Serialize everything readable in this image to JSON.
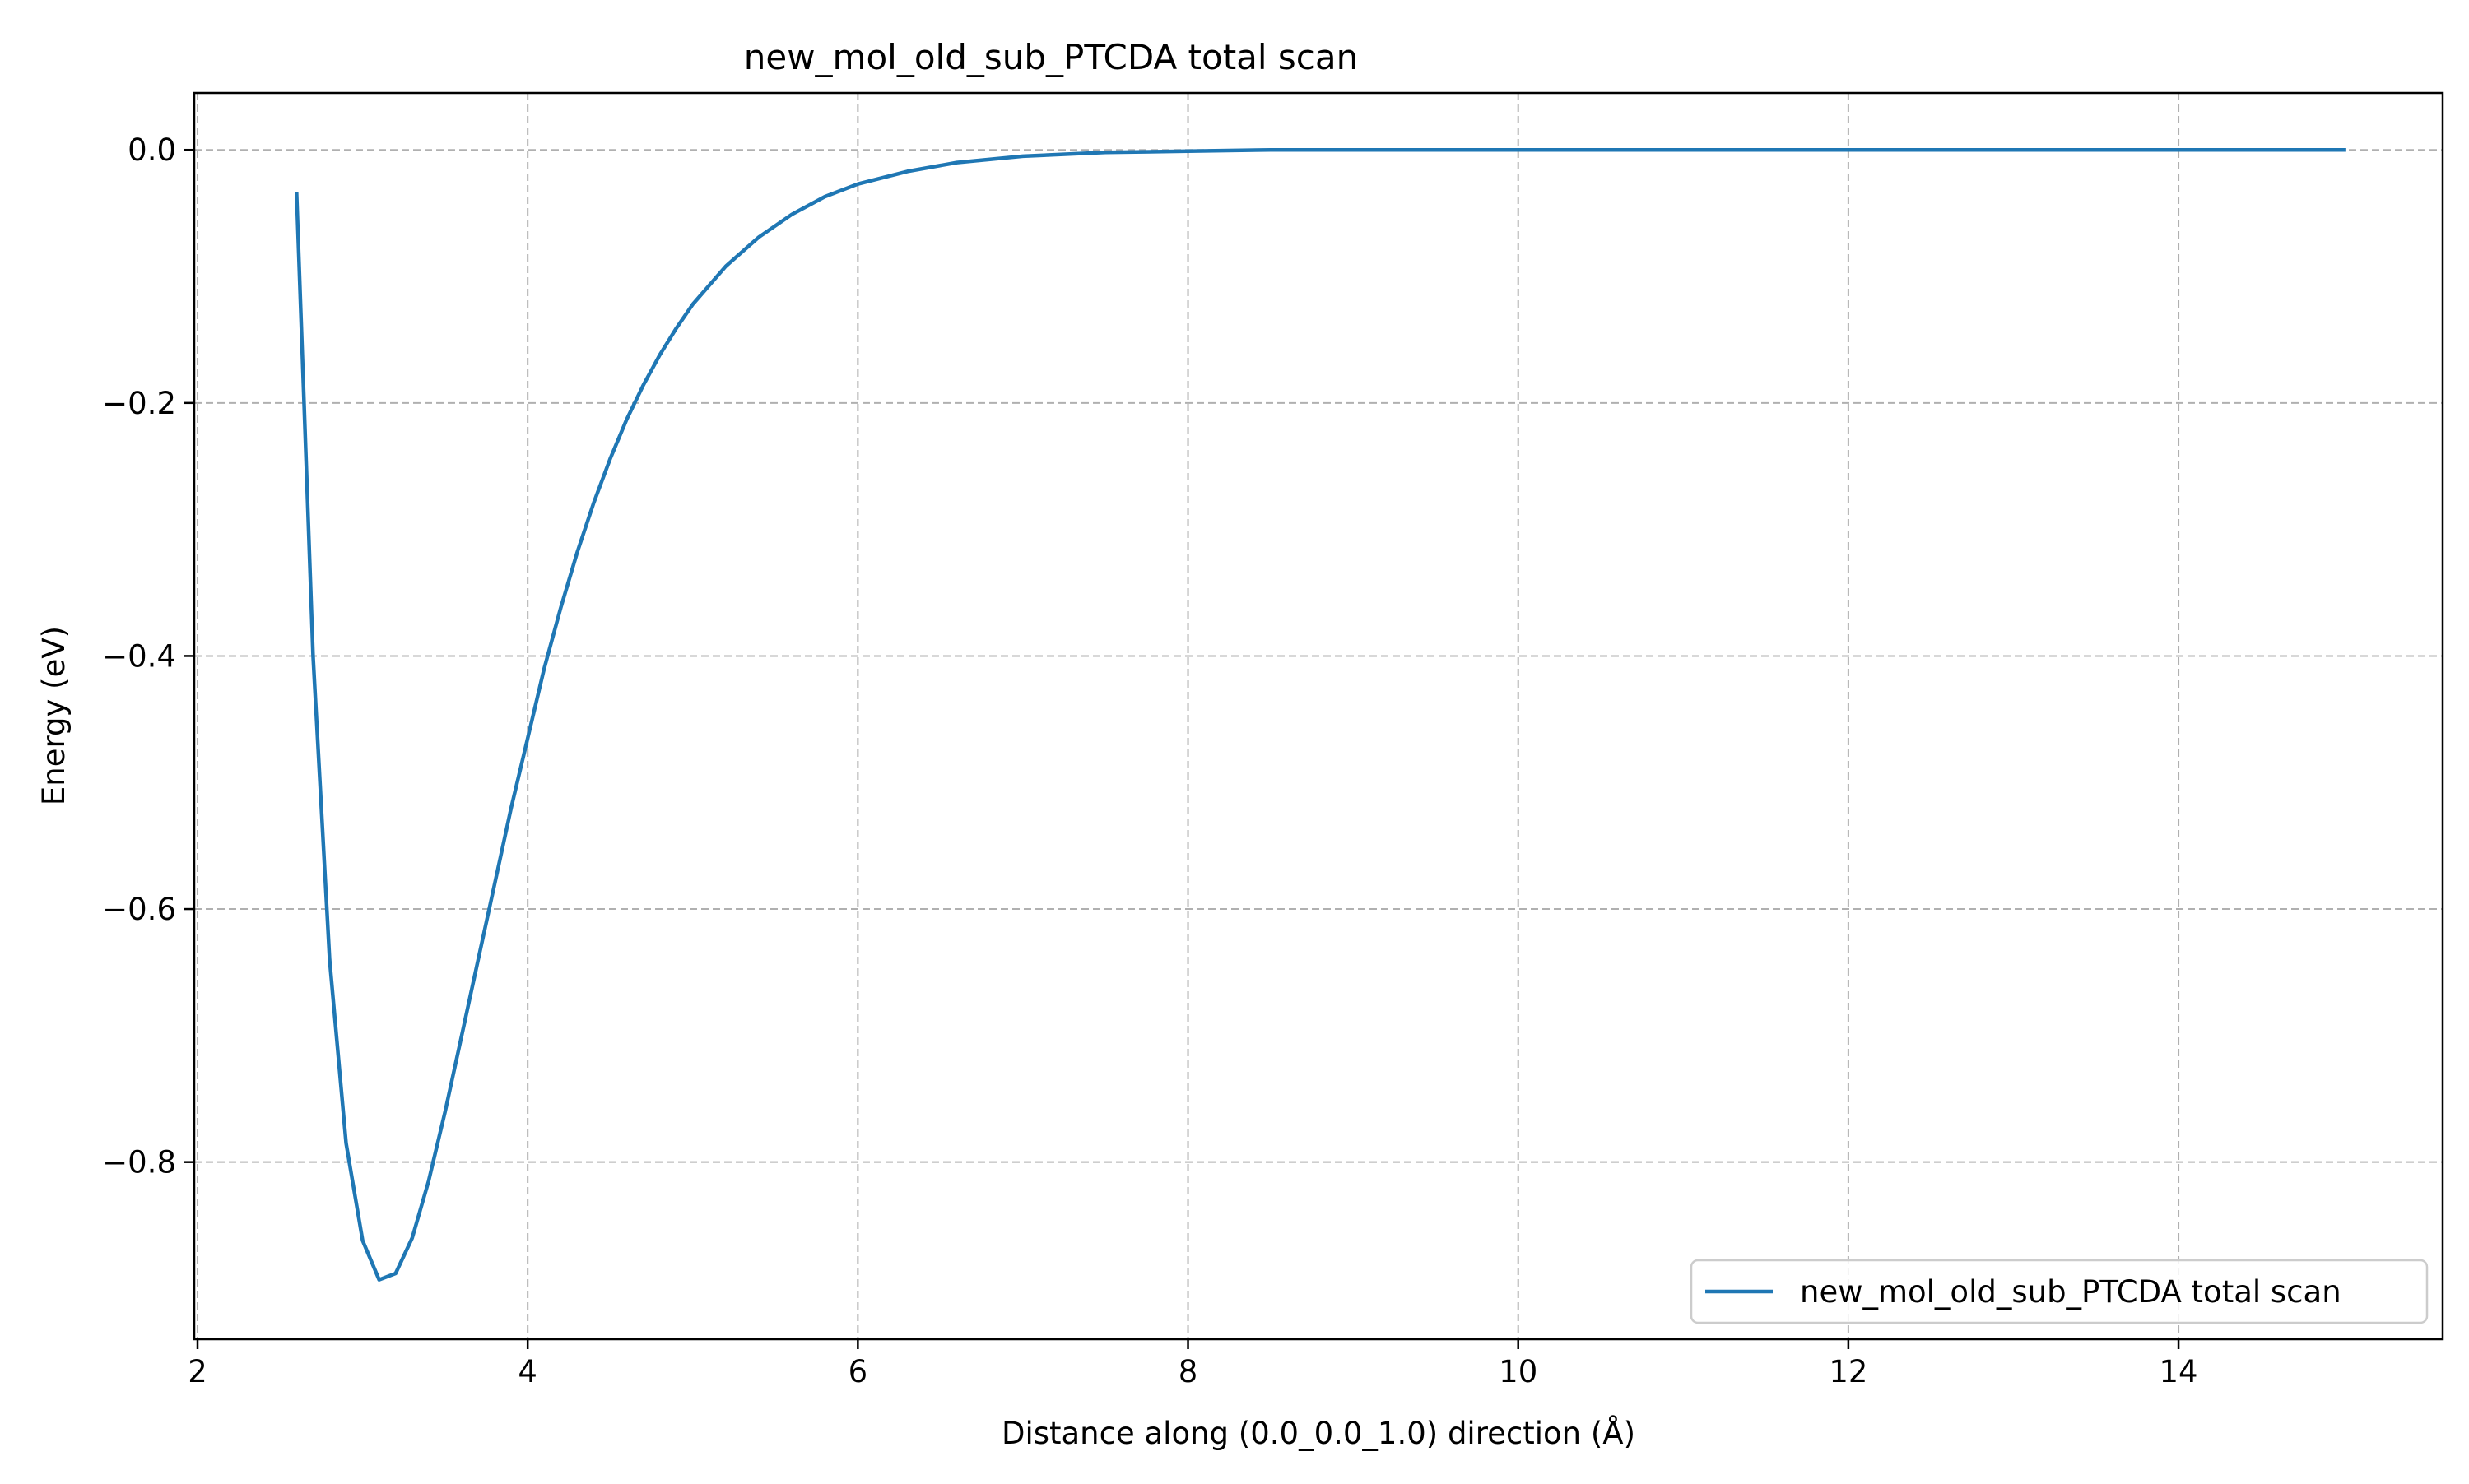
{
  "chart_data": {
    "type": "line",
    "title": "new_mol_old_sub_PTCDA total scan",
    "xlabel": "Distance along (0.0_0.0_1.0) direction (Å)",
    "ylabel": "Energy (eV)",
    "xlim": [
      1.98,
      15.6
    ],
    "ylim": [
      -0.94,
      0.045
    ],
    "xticks": [
      2,
      4,
      6,
      8,
      10,
      12,
      14
    ],
    "xtick_labels": [
      "2",
      "4",
      "6",
      "8",
      "10",
      "12",
      "14"
    ],
    "yticks": [
      0.0,
      -0.2,
      -0.4,
      -0.6,
      -0.8
    ],
    "ytick_labels": [
      "0.0",
      "−0.2",
      "−0.4",
      "−0.6",
      "−0.8"
    ],
    "grid": true,
    "grid_style": "dashed",
    "legend_position": "lower-right",
    "colors": {
      "series": "#1f77b4",
      "grid": "#b0b0b0",
      "axis": "#000000"
    },
    "series": [
      {
        "name": "new_mol_old_sub_PTCDA total scan",
        "x": [
          2.6,
          2.7,
          2.8,
          2.9,
          3.0,
          3.1,
          3.2,
          3.3,
          3.4,
          3.5,
          3.6,
          3.7,
          3.8,
          3.9,
          4.0,
          4.1,
          4.2,
          4.3,
          4.4,
          4.5,
          4.6,
          4.7,
          4.8,
          4.9,
          5.0,
          5.2,
          5.4,
          5.6,
          5.8,
          6.0,
          6.3,
          6.6,
          7.0,
          7.5,
          8.0,
          8.5,
          9.0,
          10.0,
          11.0,
          12.0,
          13.0,
          14.0,
          15.0
        ],
        "y": [
          -0.035,
          -0.4,
          -0.64,
          -0.785,
          -0.862,
          -0.893,
          -0.888,
          -0.86,
          -0.815,
          -0.76,
          -0.7,
          -0.64,
          -0.58,
          -0.52,
          -0.465,
          -0.41,
          -0.362,
          -0.318,
          -0.279,
          -0.244,
          -0.213,
          -0.186,
          -0.162,
          -0.141,
          -0.122,
          -0.092,
          -0.069,
          -0.051,
          -0.037,
          -0.027,
          -0.017,
          -0.01,
          -0.005,
          -0.002,
          -0.001,
          0.0,
          0.0,
          0.0,
          0.0,
          0.0,
          0.0,
          0.0,
          0.0
        ]
      }
    ]
  }
}
